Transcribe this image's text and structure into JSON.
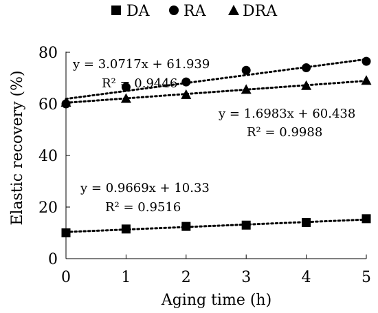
{
  "chart_data": {
    "type": "scatter",
    "title": "",
    "xlabel": "Aging time (h)",
    "ylabel": "Elastic recovery (%)",
    "xlim": [
      0,
      5
    ],
    "ylim": [
      0,
      80
    ],
    "x_ticks": [
      "0",
      "1",
      "2",
      "3",
      "4",
      "5"
    ],
    "y_ticks": [
      "0",
      "20",
      "40",
      "60",
      "80"
    ],
    "grid": false,
    "legend_position": "top",
    "x": [
      0,
      1,
      2,
      3,
      4,
      5
    ],
    "series": [
      {
        "name": "DA",
        "marker": "square",
        "values": [
          10,
          11.5,
          12.5,
          13,
          14,
          15.5
        ],
        "trendline": {
          "equation": "y = 0.9669x + 10.33",
          "r2": "R² = 0.9516",
          "slope": 0.9669,
          "intercept": 10.33
        }
      },
      {
        "name": "RA",
        "marker": "circle",
        "values": [
          60,
          66.5,
          68.5,
          73,
          74,
          76.5
        ],
        "trendline": {
          "equation": "y = 3.0717x + 61.939",
          "r2": "R² = 0.9446",
          "slope": 3.0717,
          "intercept": 61.939
        }
      },
      {
        "name": "DRA",
        "marker": "triangle",
        "values": [
          60.5,
          62,
          63.5,
          65.5,
          67,
          69
        ],
        "trendline": {
          "equation": "y = 1.6983x + 60.438",
          "r2": "R² = 0.9988",
          "slope": 1.6983,
          "intercept": 60.438
        }
      }
    ]
  }
}
